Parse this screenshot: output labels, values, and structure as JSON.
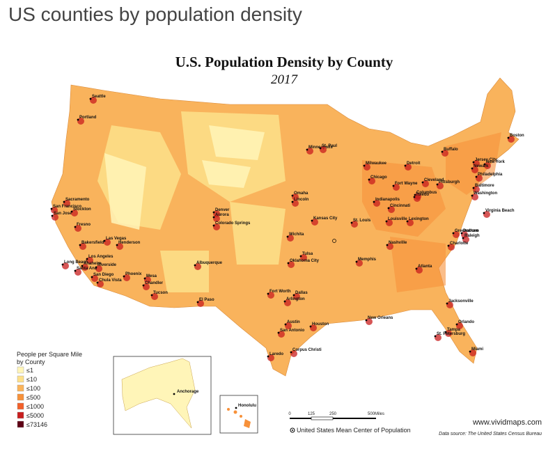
{
  "header": {
    "title": "US counties by population density"
  },
  "map": {
    "title": "U.S. Population Density by County",
    "subtitle": "2017",
    "base_color": "#f9b35c",
    "cities": [
      "Seattle",
      "Portland",
      "Sacramento",
      "San Francisco",
      "San Jose",
      "Stockton",
      "Fresno",
      "Bakersfield",
      "Las Vegas",
      "Henderson",
      "Los Angeles",
      "Long Beach",
      "Anaheim",
      "Riverside",
      "Santa Ana",
      "San Diego",
      "Chula Vista",
      "Phoenix",
      "Mesa",
      "Chandler",
      "Tucson",
      "El Paso",
      "Albuquerque",
      "Denver",
      "Aurora",
      "Colorado Springs",
      "Minneapolis",
      "St. Paul",
      "Omaha",
      "Lincoln",
      "Wichita",
      "Kansas City",
      "St. Louis",
      "Tulsa",
      "Oklahoma City",
      "Fort Worth",
      "Dallas",
      "Arlington",
      "Austin",
      "San Antonio",
      "Houston",
      "Corpus Christi",
      "Laredo",
      "New Orleans",
      "Memphis",
      "Nashville",
      "Louisville",
      "Lexington",
      "Indianapolis",
      "Cincinnati",
      "Columbus",
      "Fort Wayne",
      "Toledo",
      "Detroit",
      "Chicago",
      "Milwaukee",
      "Cleveland",
      "Pittsburgh",
      "Buffalo",
      "Boston",
      "New York",
      "Jersey City",
      "Newark",
      "Philadelphia",
      "Baltimore",
      "Washington",
      "Virginia Beach",
      "Greensboro",
      "Durham",
      "Raleigh",
      "Charlotte",
      "Atlanta",
      "Jacksonville",
      "Orlando",
      "Tampa",
      "St. Petersburg",
      "Miami"
    ],
    "alaska_city": "Anchorage",
    "hawaii_city": "Honolulu"
  },
  "legend": {
    "title": [
      "People per Square Mile",
      "by County"
    ],
    "items": [
      {
        "label": "≤1",
        "color": "#fff5b8"
      },
      {
        "label": "≤10",
        "color": "#fde08a"
      },
      {
        "label": "≤100",
        "color": "#fbb45a"
      },
      {
        "label": "≤500",
        "color": "#f7913a"
      },
      {
        "label": "≤1000",
        "color": "#f2602a"
      },
      {
        "label": "≤5000",
        "color": "#c81e1e"
      },
      {
        "label": "≤73146",
        "color": "#5e0014"
      }
    ]
  },
  "scale": {
    "labels": [
      "0",
      "125",
      "250",
      "500Miles"
    ]
  },
  "footer": {
    "center_note": "United States Mean Center of Population",
    "website": "www.vividmaps.com",
    "source": "Data source: The United States Census Bureau"
  }
}
